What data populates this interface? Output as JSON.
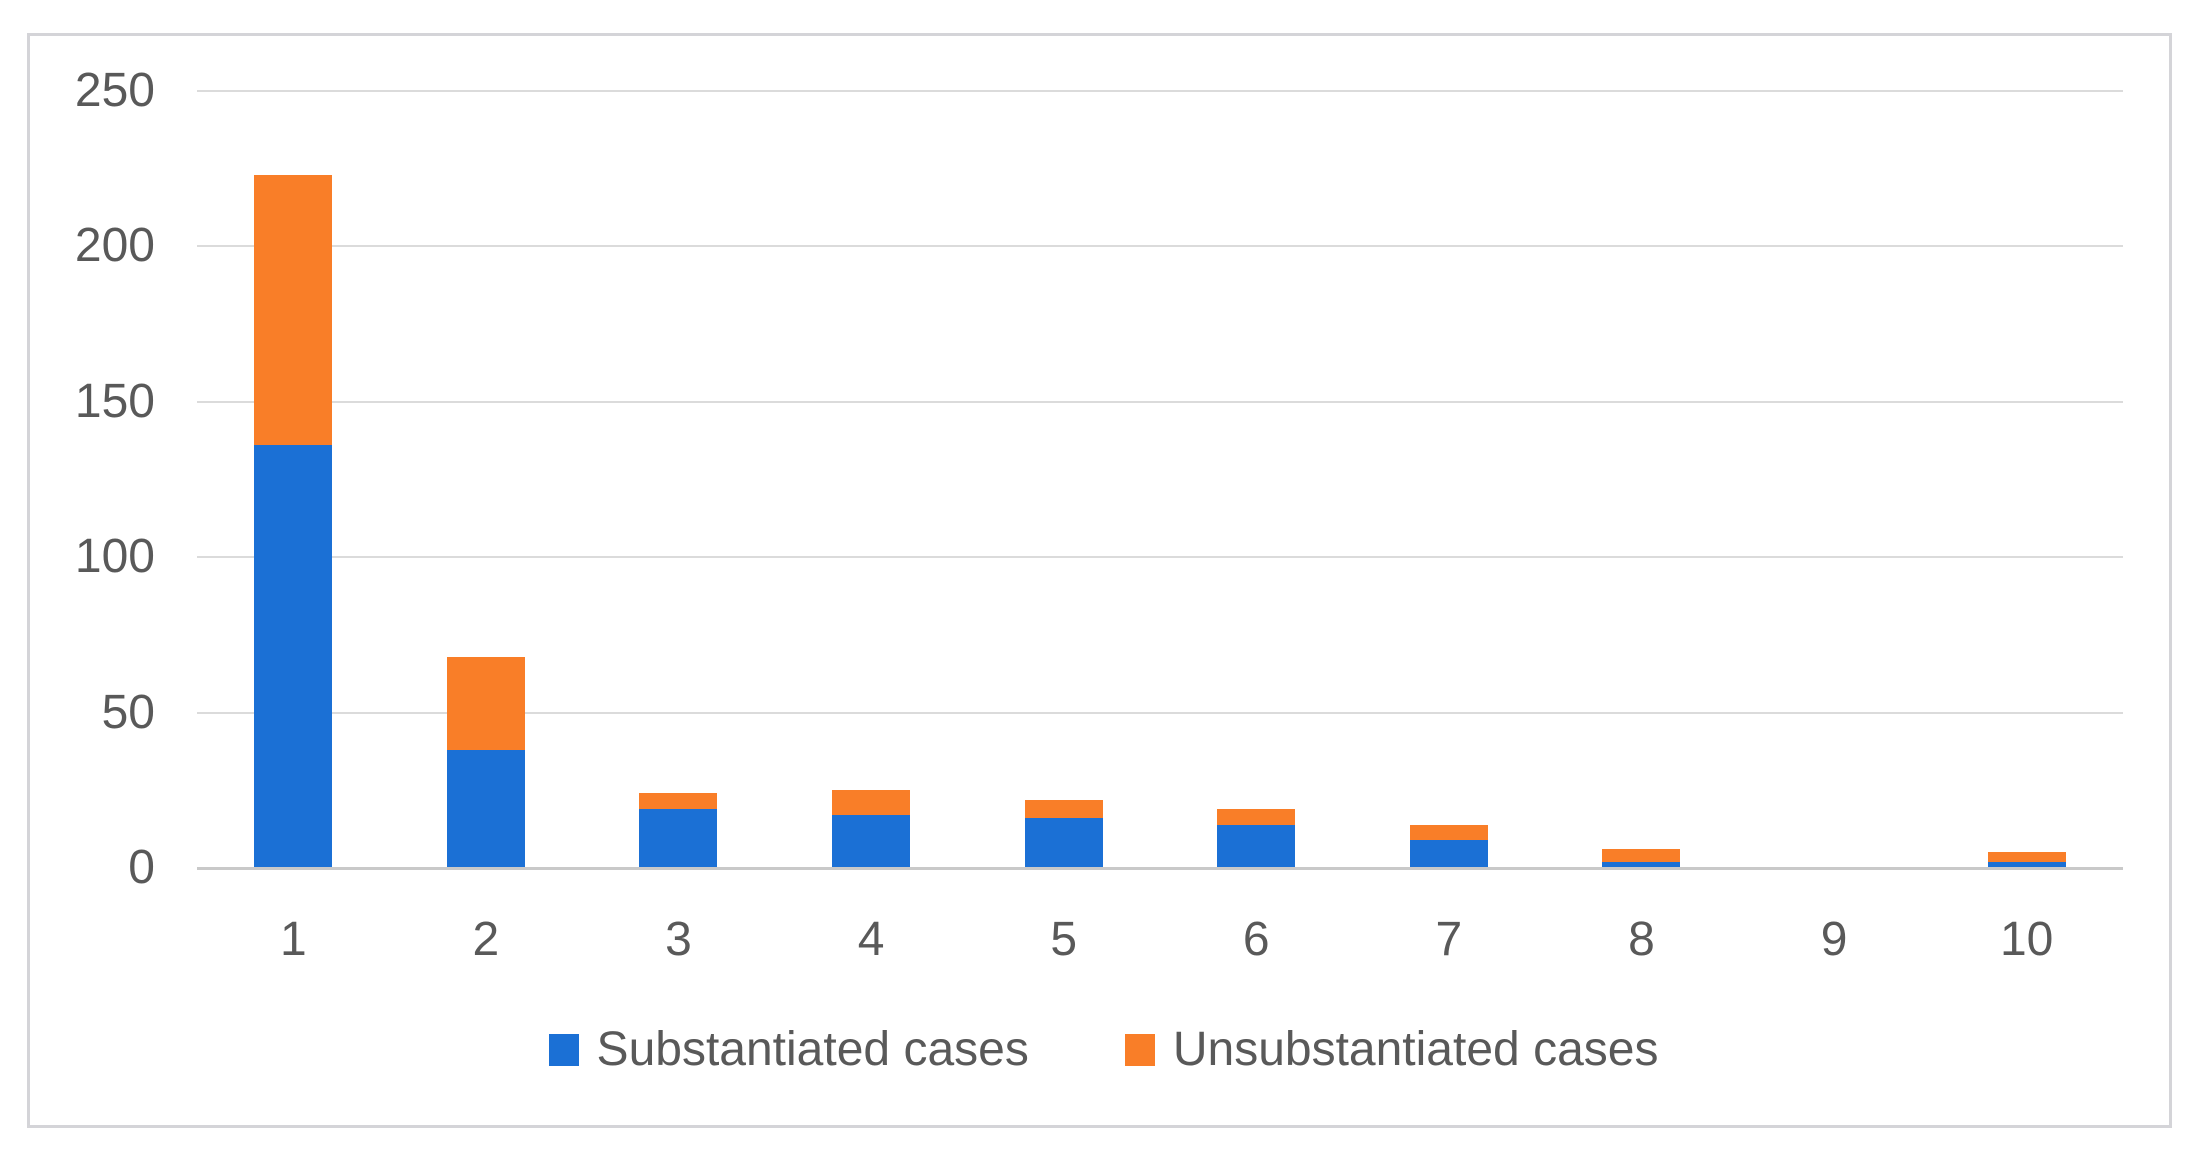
{
  "chart_data": {
    "type": "bar",
    "subtype": "stacked-vertical",
    "title": "",
    "xlabel": "",
    "ylabel": "",
    "categories": [
      "1",
      "2",
      "3",
      "4",
      "5",
      "6",
      "7",
      "8",
      "9",
      "10"
    ],
    "series": [
      {
        "name": "Substantiated cases",
        "color": "#1b70d5",
        "values": [
          136,
          38,
          19,
          17,
          16,
          14,
          9,
          2,
          0,
          2
        ]
      },
      {
        "name": "Unsubstantiated cases",
        "color": "#f97e28",
        "values": [
          87,
          30,
          5,
          8,
          6,
          5,
          5,
          4,
          0,
          3
        ]
      }
    ],
    "stack_totals": [
      223,
      68,
      24,
      25,
      22,
      19,
      14,
      6,
      0,
      5
    ],
    "ylim": [
      0,
      250
    ],
    "yticks": [
      0,
      50,
      100,
      150,
      200,
      250
    ],
    "ytick_labels": [
      "0",
      "50",
      "100",
      "150",
      "200",
      "250"
    ],
    "grid": true,
    "gridline_color": "#dbdbdb",
    "axis_line_color": "#c9c9c9",
    "tick_label_color": "#595959",
    "legend_position": "bottom",
    "legend": [
      "Substantiated cases",
      "Unsubstantiated cases"
    ]
  }
}
